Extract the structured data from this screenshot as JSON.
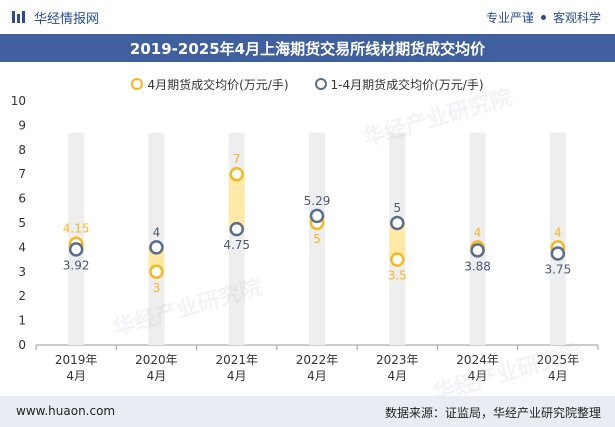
{
  "header": {
    "brand": "华经情报网",
    "tag1": "专业严谨",
    "tag2": "客观科学"
  },
  "watermark": "华经产业研究院",
  "footer": {
    "url": "www.huaon.com",
    "source": "数据来源：证监局，华经产业研究院整理"
  },
  "colors": {
    "series_apr": "#f4b820",
    "series_ytd": "#5b6e8c",
    "title_bg": "#3f5f9e",
    "band_gray": "#eeeeee",
    "band_yellow": "#ffe9a6"
  },
  "chart_data": {
    "type": "line",
    "title": "2019-2025年4月上海期货交易所线材期货成交均价",
    "categories": [
      "2019年\n4月",
      "2020年\n4月",
      "2021年\n4月",
      "2022年\n4月",
      "2023年\n4月",
      "2024年\n4月",
      "2025年\n4月"
    ],
    "series": [
      {
        "name": "4月期货成交均价(万元/手)",
        "values": [
          4.15,
          3,
          7,
          5,
          3.5,
          4,
          4
        ]
      },
      {
        "name": "1-4月期货成交均价(万元/手)",
        "values": [
          3.92,
          4,
          4.75,
          5.29,
          5,
          3.88,
          3.75
        ]
      }
    ],
    "ylim": [
      0,
      10
    ],
    "yticks": [
      0,
      1,
      2,
      3,
      4,
      5,
      6,
      7,
      8,
      9,
      10
    ],
    "legend_position": "top-center",
    "grid": false
  }
}
